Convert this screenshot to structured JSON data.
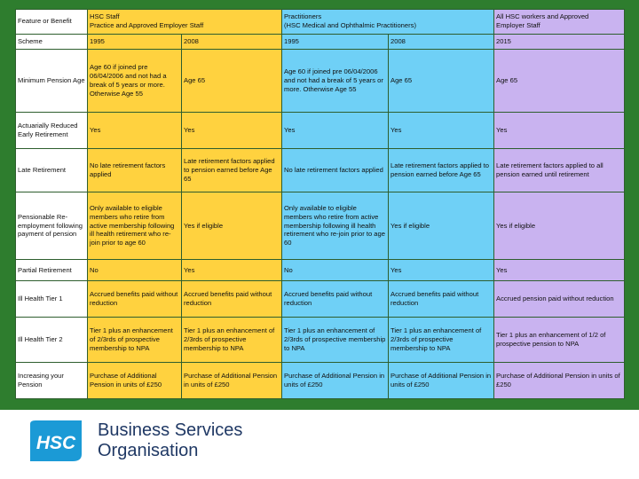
{
  "table": {
    "header": {
      "feature": "Feature or Benefit",
      "hsc": [
        "HSC Staff",
        "Practice and Approved Employer Staff"
      ],
      "prac": [
        "Practitioners",
        "(HSC Medical and Ophthalmic Practitioners)"
      ],
      "all": [
        "All HSC workers and Approved",
        "Employer Staff"
      ]
    },
    "rows": [
      {
        "feature": "Scheme",
        "hsc1995": "1995",
        "hsc2008": "2008",
        "prac1995": "1995",
        "prac2008": "2008",
        "all2015": "2015"
      },
      {
        "feature": "Minimum Pension Age",
        "hsc1995": "Age 60 if joined pre 06/04/2006 and not had a break of 5 years or more. Otherwise Age 55",
        "hsc2008": "Age 65",
        "prac1995": "Age 60 if joined pre 06/04/2006 and not had a break of 5 years or more. Otherwise Age 55",
        "prac2008": "Age 65",
        "all2015": "Age 65"
      },
      {
        "feature": "Actuarially Reduced Early Retirement",
        "hsc1995": "Yes",
        "hsc2008": "Yes",
        "prac1995": "Yes",
        "prac2008": "Yes",
        "all2015": "Yes"
      },
      {
        "feature": "Late Retirement",
        "hsc1995": "No late retirement factors applied",
        "hsc2008": "Late retirement factors applied to pension earned before Age 65",
        "prac1995": "No late retirement factors applied",
        "prac2008": "Late retirement factors applied to pension earned before Age 65",
        "all2015": "Late retirement factors applied to all pension earned until retirement"
      },
      {
        "feature": "Pensionable Re-employment following payment of pension",
        "hsc1995": "Only available to eligible members who retire from active membership following ill health retirement who re-join prior to age 60",
        "hsc2008": "Yes if eligible",
        "prac1995": "Only available to eligible members who retire from active membership following ill health retirement who re-join prior to age 60",
        "prac2008": "Yes if eligible",
        "all2015": "Yes if eligible"
      },
      {
        "feature": "Partial Retirement",
        "hsc1995": "No",
        "hsc2008": "Yes",
        "prac1995": "No",
        "prac2008": "Yes",
        "all2015": "Yes"
      },
      {
        "feature": "Ill Health Tier 1",
        "hsc1995": "Accrued benefits paid without reduction",
        "hsc2008": "Accrued benefits paid without reduction",
        "prac1995": "Accrued benefits paid without reduction",
        "prac2008": "Accrued benefits paid without reduction",
        "all2015": "Accrued pension paid without reduction"
      },
      {
        "feature": "Ill Health Tier 2",
        "hsc1995": "Tier 1 plus an enhancement of 2/3rds of prospective membership to NPA",
        "hsc2008": "Tier 1 plus an enhancement of 2/3rds of prospective membership to NPA",
        "prac1995": "Tier 1 plus an enhancement of 2/3rds of prospective membership to NPA",
        "prac2008": "Tier 1 plus an enhancement of 2/3rds of prospective membership to NPA",
        "all2015": "Tier 1 plus an enhancement of 1/2 of prospective pension to NPA"
      },
      {
        "feature": "Increasing your Pension",
        "hsc1995": "Purchase of Additional Pension in units of £250",
        "hsc2008": "Purchase of Additional Pension in units of £250",
        "prac1995": "Purchase of Additional Pension in units of £250",
        "prac2008": "Purchase of Additional Pension in units of £250",
        "all2015": "Purchase of Additional Pension in units of £250"
      }
    ]
  },
  "logo": {
    "text": "HSC",
    "color": "#1b9ad6"
  },
  "org": {
    "line1": "Business Services",
    "line2": "Organisation"
  }
}
